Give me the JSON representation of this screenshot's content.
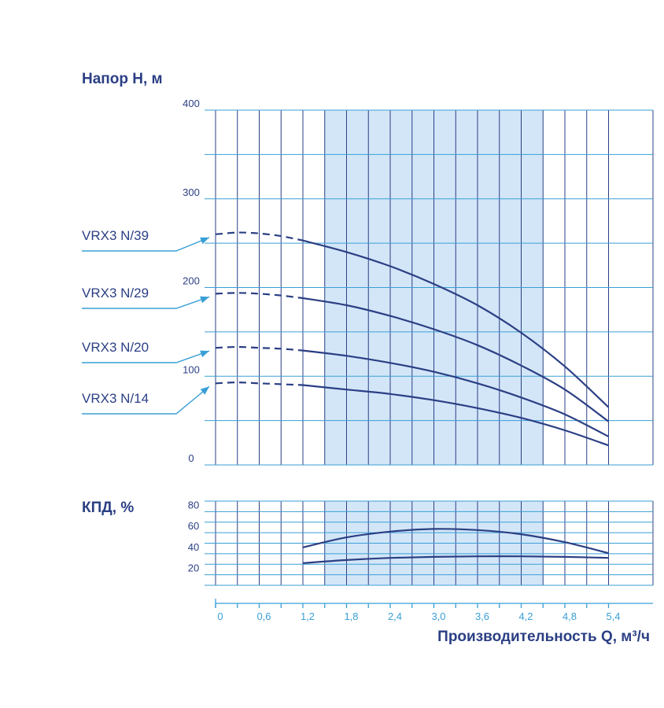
{
  "colors": {
    "grid_h": "#3a9fd6",
    "grid_v": "#2b3f84",
    "highlight": "#d3e6f8",
    "curve": "#2b3f84",
    "arrow": "#3a9fd6",
    "text_dark": "#2b3f84",
    "text_light": "#3a9fd6"
  },
  "chart_data": [
    {
      "type": "line",
      "title": "Напор Н, м",
      "ylabel": "Напор Н, м",
      "ylim": [
        0,
        400
      ],
      "yticks": [
        "400",
        "300",
        "200",
        "100",
        "0"
      ],
      "xlim": [
        0,
        5.75
      ],
      "highlight_range": [
        1.5,
        4.5
      ],
      "grid": true,
      "series": [
        {
          "name": "VRX3 N/39",
          "dashed_x": [
            0,
            0.3,
            0.6,
            0.9,
            1.2
          ],
          "dashed_y": [
            260,
            262,
            261,
            258,
            253
          ],
          "x": [
            1.2,
            1.8,
            2.4,
            3.0,
            3.6,
            4.2,
            4.8,
            5.4
          ],
          "y": [
            253,
            240,
            224,
            204,
            180,
            149,
            111,
            65
          ]
        },
        {
          "name": "VRX3 N/29",
          "dashed_x": [
            0,
            0.3,
            0.6,
            0.9,
            1.2
          ],
          "dashed_y": [
            193,
            194,
            193,
            191,
            188
          ],
          "x": [
            1.2,
            1.8,
            2.4,
            3.0,
            3.6,
            4.2,
            4.8,
            5.4
          ],
          "y": [
            188,
            180,
            168,
            153,
            135,
            112,
            85,
            49
          ]
        },
        {
          "name": "VRX3 N/20",
          "dashed_x": [
            0,
            0.3,
            0.6,
            0.9,
            1.2
          ],
          "dashed_y": [
            132,
            133,
            132,
            131,
            129
          ],
          "x": [
            1.2,
            1.8,
            2.4,
            3.0,
            3.6,
            4.2,
            4.8,
            5.4
          ],
          "y": [
            129,
            123,
            115,
            105,
            92,
            76,
            57,
            32
          ]
        },
        {
          "name": "VRX3 N/14",
          "dashed_x": [
            0,
            0.3,
            0.6,
            0.9,
            1.2
          ],
          "dashed_y": [
            92,
            93,
            92,
            91,
            90
          ],
          "x": [
            1.2,
            1.8,
            2.4,
            3.0,
            3.6,
            4.2,
            4.8,
            5.4
          ],
          "y": [
            90,
            85,
            80,
            73,
            64,
            53,
            39,
            22
          ]
        }
      ]
    },
    {
      "type": "line",
      "title": "КПД, %",
      "ylabel": "КПД, %",
      "ylim": [
        10,
        90
      ],
      "yticks": [
        "80",
        "60",
        "40",
        "20"
      ],
      "xlim": [
        0,
        5.75
      ],
      "highlight_range": [
        1.5,
        4.5
      ],
      "grid": true,
      "series": [
        {
          "x": [
            1.2,
            1.8,
            2.4,
            3.0,
            3.6,
            4.2,
            4.8,
            5.4
          ],
          "y": [
            46,
            55.5,
            61,
            63.5,
            62.5,
            58.5,
            51,
            40.5
          ]
        },
        {
          "x": [
            1.2,
            1.8,
            2.4,
            3.0,
            3.6,
            4.2,
            4.8,
            5.4
          ],
          "y": [
            31,
            34,
            36,
            37,
            37.5,
            37.5,
            37,
            36
          ]
        }
      ]
    }
  ],
  "x_axis": {
    "label": "Производительность Q, м³/ч",
    "ticks": [
      "0",
      "0,6",
      "1,2",
      "1,8",
      "2,4",
      "3,0",
      "3,6",
      "4,2",
      "4,8",
      "5,4"
    ],
    "tick_values": [
      0,
      0.6,
      1.2,
      1.8,
      2.4,
      3.0,
      3.6,
      4.2,
      4.8,
      5.4
    ]
  }
}
